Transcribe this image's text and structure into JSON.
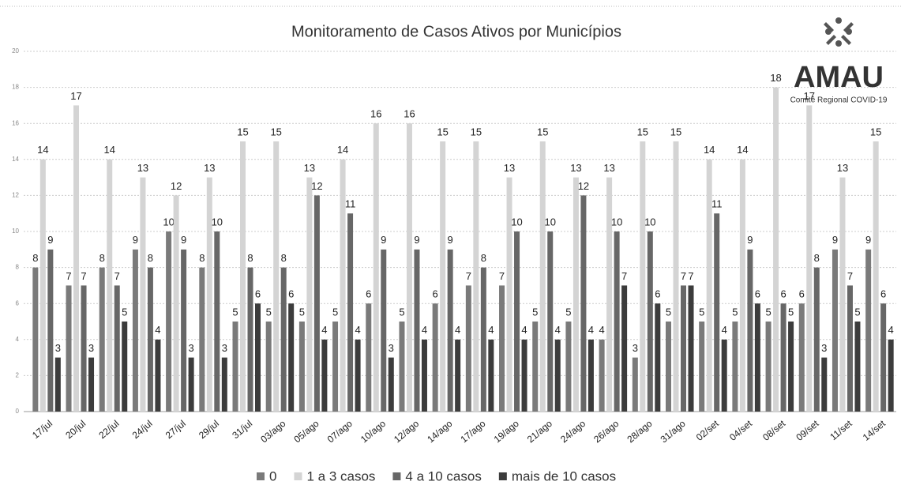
{
  "chart_data": {
    "type": "bar",
    "title": "Monitoramento de Casos Ativos por Municípios",
    "categories": [
      "17/jul",
      "20/jul",
      "22/jul",
      "24/jul",
      "27/jul",
      "29/jul",
      "31/jul",
      "03/ago",
      "05/ago",
      "07/ago",
      "10/ago",
      "12/ago",
      "14/ago",
      "17/ago",
      "19/ago",
      "21/ago",
      "24/ago",
      "26/ago",
      "28/ago",
      "31/ago",
      "02/set",
      "04/set",
      "08/set",
      "09/set",
      "11/set",
      "14/set"
    ],
    "series": [
      {
        "name": "0",
        "color": "#7a7a7a",
        "values": [
          8,
          7,
          8,
          9,
          10,
          8,
          5,
          5,
          5,
          5,
          6,
          5,
          6,
          7,
          7,
          5,
          5,
          4,
          3,
          5,
          5,
          5,
          5,
          6,
          9,
          9
        ]
      },
      {
        "name": "1 a 3 casos",
        "color": "#d4d4d4",
        "values": [
          14,
          17,
          14,
          13,
          12,
          13,
          15,
          15,
          13,
          14,
          16,
          16,
          15,
          15,
          13,
          15,
          13,
          13,
          15,
          15,
          14,
          14,
          18,
          17,
          13,
          15
        ]
      },
      {
        "name": "4 a 10 casos",
        "color": "#676767",
        "values": [
          9,
          7,
          7,
          8,
          9,
          10,
          8,
          8,
          12,
          11,
          9,
          9,
          9,
          8,
          10,
          10,
          12,
          10,
          10,
          7,
          11,
          9,
          6,
          8,
          7,
          6
        ]
      },
      {
        "name": "mais de 10 casos",
        "color": "#3c3c3c",
        "values": [
          3,
          3,
          5,
          4,
          3,
          3,
          6,
          6,
          4,
          4,
          3,
          4,
          4,
          4,
          4,
          4,
          4,
          7,
          6,
          7,
          4,
          6,
          5,
          3,
          5,
          4
        ]
      }
    ],
    "ylim": [
      0,
      20
    ],
    "yticks": [
      0,
      2,
      4,
      6,
      8,
      10,
      12,
      14,
      16,
      18,
      20
    ],
    "grid": true,
    "legend": "bottom"
  },
  "logo": {
    "name": "AMAU",
    "subtitle": "Comitê Regional COVID-19"
  }
}
